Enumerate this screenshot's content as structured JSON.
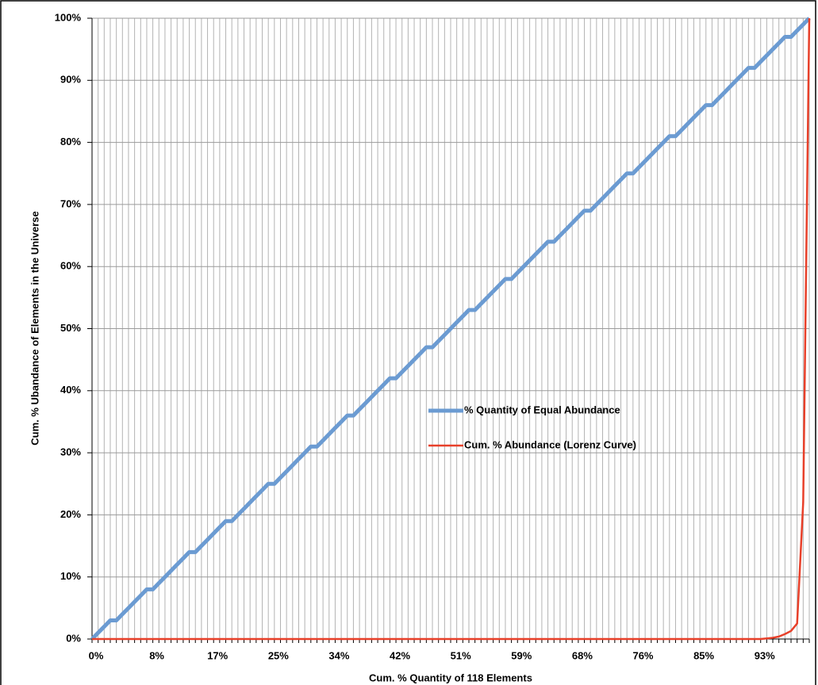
{
  "chart_data": {
    "type": "line",
    "x_label": "Cum. % Quantity of 118 Elements",
    "y_label": "Cum. % Ubandance of  Elements in the Universe",
    "categories": [
      "0%",
      null,
      null,
      null,
      null,
      null,
      null,
      null,
      null,
      null,
      "8%",
      null,
      null,
      null,
      null,
      null,
      null,
      null,
      null,
      null,
      "17%",
      null,
      null,
      null,
      null,
      null,
      null,
      null,
      null,
      null,
      "25%",
      null,
      null,
      null,
      null,
      null,
      null,
      null,
      null,
      null,
      "34%",
      null,
      null,
      null,
      null,
      null,
      null,
      null,
      null,
      null,
      "42%",
      null,
      null,
      null,
      null,
      null,
      null,
      null,
      null,
      null,
      "51%",
      null,
      null,
      null,
      null,
      null,
      null,
      null,
      null,
      null,
      "59%",
      null,
      null,
      null,
      null,
      null,
      null,
      null,
      null,
      null,
      "68%",
      null,
      null,
      null,
      null,
      null,
      null,
      null,
      null,
      null,
      "76%",
      null,
      null,
      null,
      null,
      null,
      null,
      null,
      null,
      null,
      "85%",
      null,
      null,
      null,
      null,
      null,
      null,
      null,
      null,
      null,
      "93%",
      null,
      null,
      null,
      null,
      null,
      null,
      null,
      null
    ],
    "series": [
      {
        "name": "% Quantity of Equal Abundance",
        "color": "#6b9bd2",
        "values": [
          0,
          1,
          2,
          3,
          3,
          4,
          5,
          6,
          7,
          8,
          8,
          9,
          10,
          11,
          12,
          13,
          14,
          14,
          15,
          16,
          17,
          18,
          19,
          19,
          20,
          21,
          22,
          23,
          24,
          25,
          25,
          26,
          27,
          28,
          29,
          30,
          31,
          31,
          32,
          33,
          34,
          35,
          36,
          36,
          37,
          38,
          39,
          40,
          41,
          42,
          42,
          43,
          44,
          45,
          46,
          47,
          47,
          48,
          49,
          50,
          51,
          52,
          53,
          53,
          54,
          55,
          56,
          57,
          58,
          58,
          59,
          60,
          61,
          62,
          63,
          64,
          64,
          65,
          66,
          67,
          68,
          69,
          69,
          70,
          71,
          72,
          73,
          74,
          75,
          75,
          76,
          77,
          78,
          79,
          80,
          81,
          81,
          82,
          83,
          84,
          85,
          86,
          86,
          87,
          88,
          89,
          90,
          91,
          92,
          92,
          93,
          94,
          95,
          96,
          97,
          97,
          98,
          99,
          100
        ]
      },
      {
        "name": "Cum. % Abundance (Lorenz Curve)",
        "color": "#e8402a",
        "values": [
          0,
          0,
          0,
          0,
          0,
          0,
          0,
          0,
          0,
          0,
          0,
          0,
          0,
          0,
          0,
          0,
          0,
          0,
          0,
          0,
          0,
          0,
          0,
          0,
          0,
          0,
          0,
          0,
          0,
          0,
          0,
          0,
          0,
          0,
          0,
          0,
          0,
          0,
          0,
          0,
          0,
          0,
          0,
          0,
          0,
          0,
          0,
          0,
          0,
          0,
          0,
          0,
          0,
          0,
          0,
          0,
          0,
          0,
          0,
          0,
          0,
          0,
          0,
          0,
          0,
          0,
          0,
          0,
          0,
          0,
          0,
          0,
          0,
          0,
          0,
          0,
          0,
          0,
          0,
          0,
          0,
          0,
          0,
          0,
          0,
          0,
          0,
          0,
          0,
          0,
          0,
          0,
          0,
          0,
          0,
          0,
          0,
          0,
          0,
          0,
          0,
          0,
          0,
          0,
          0,
          0,
          0,
          0,
          0,
          0,
          0,
          0.1,
          0.2,
          0.4,
          0.8,
          1.3,
          2.5,
          22,
          100
        ]
      }
    ],
    "ylim": [
      0,
      100
    ],
    "yticks": [
      {
        "value": 0,
        "label": "0%"
      },
      {
        "value": 10,
        "label": "10%"
      },
      {
        "value": 20,
        "label": "20%"
      },
      {
        "value": 30,
        "label": "30%"
      },
      {
        "value": 40,
        "label": "40%"
      },
      {
        "value": 50,
        "label": "50%"
      },
      {
        "value": 60,
        "label": "60%"
      },
      {
        "value": 70,
        "label": "70%"
      },
      {
        "value": 80,
        "label": "80%"
      },
      {
        "value": 90,
        "label": "90%"
      },
      {
        "value": 100,
        "label": "100%"
      }
    ],
    "grid": true,
    "legend": "center"
  }
}
